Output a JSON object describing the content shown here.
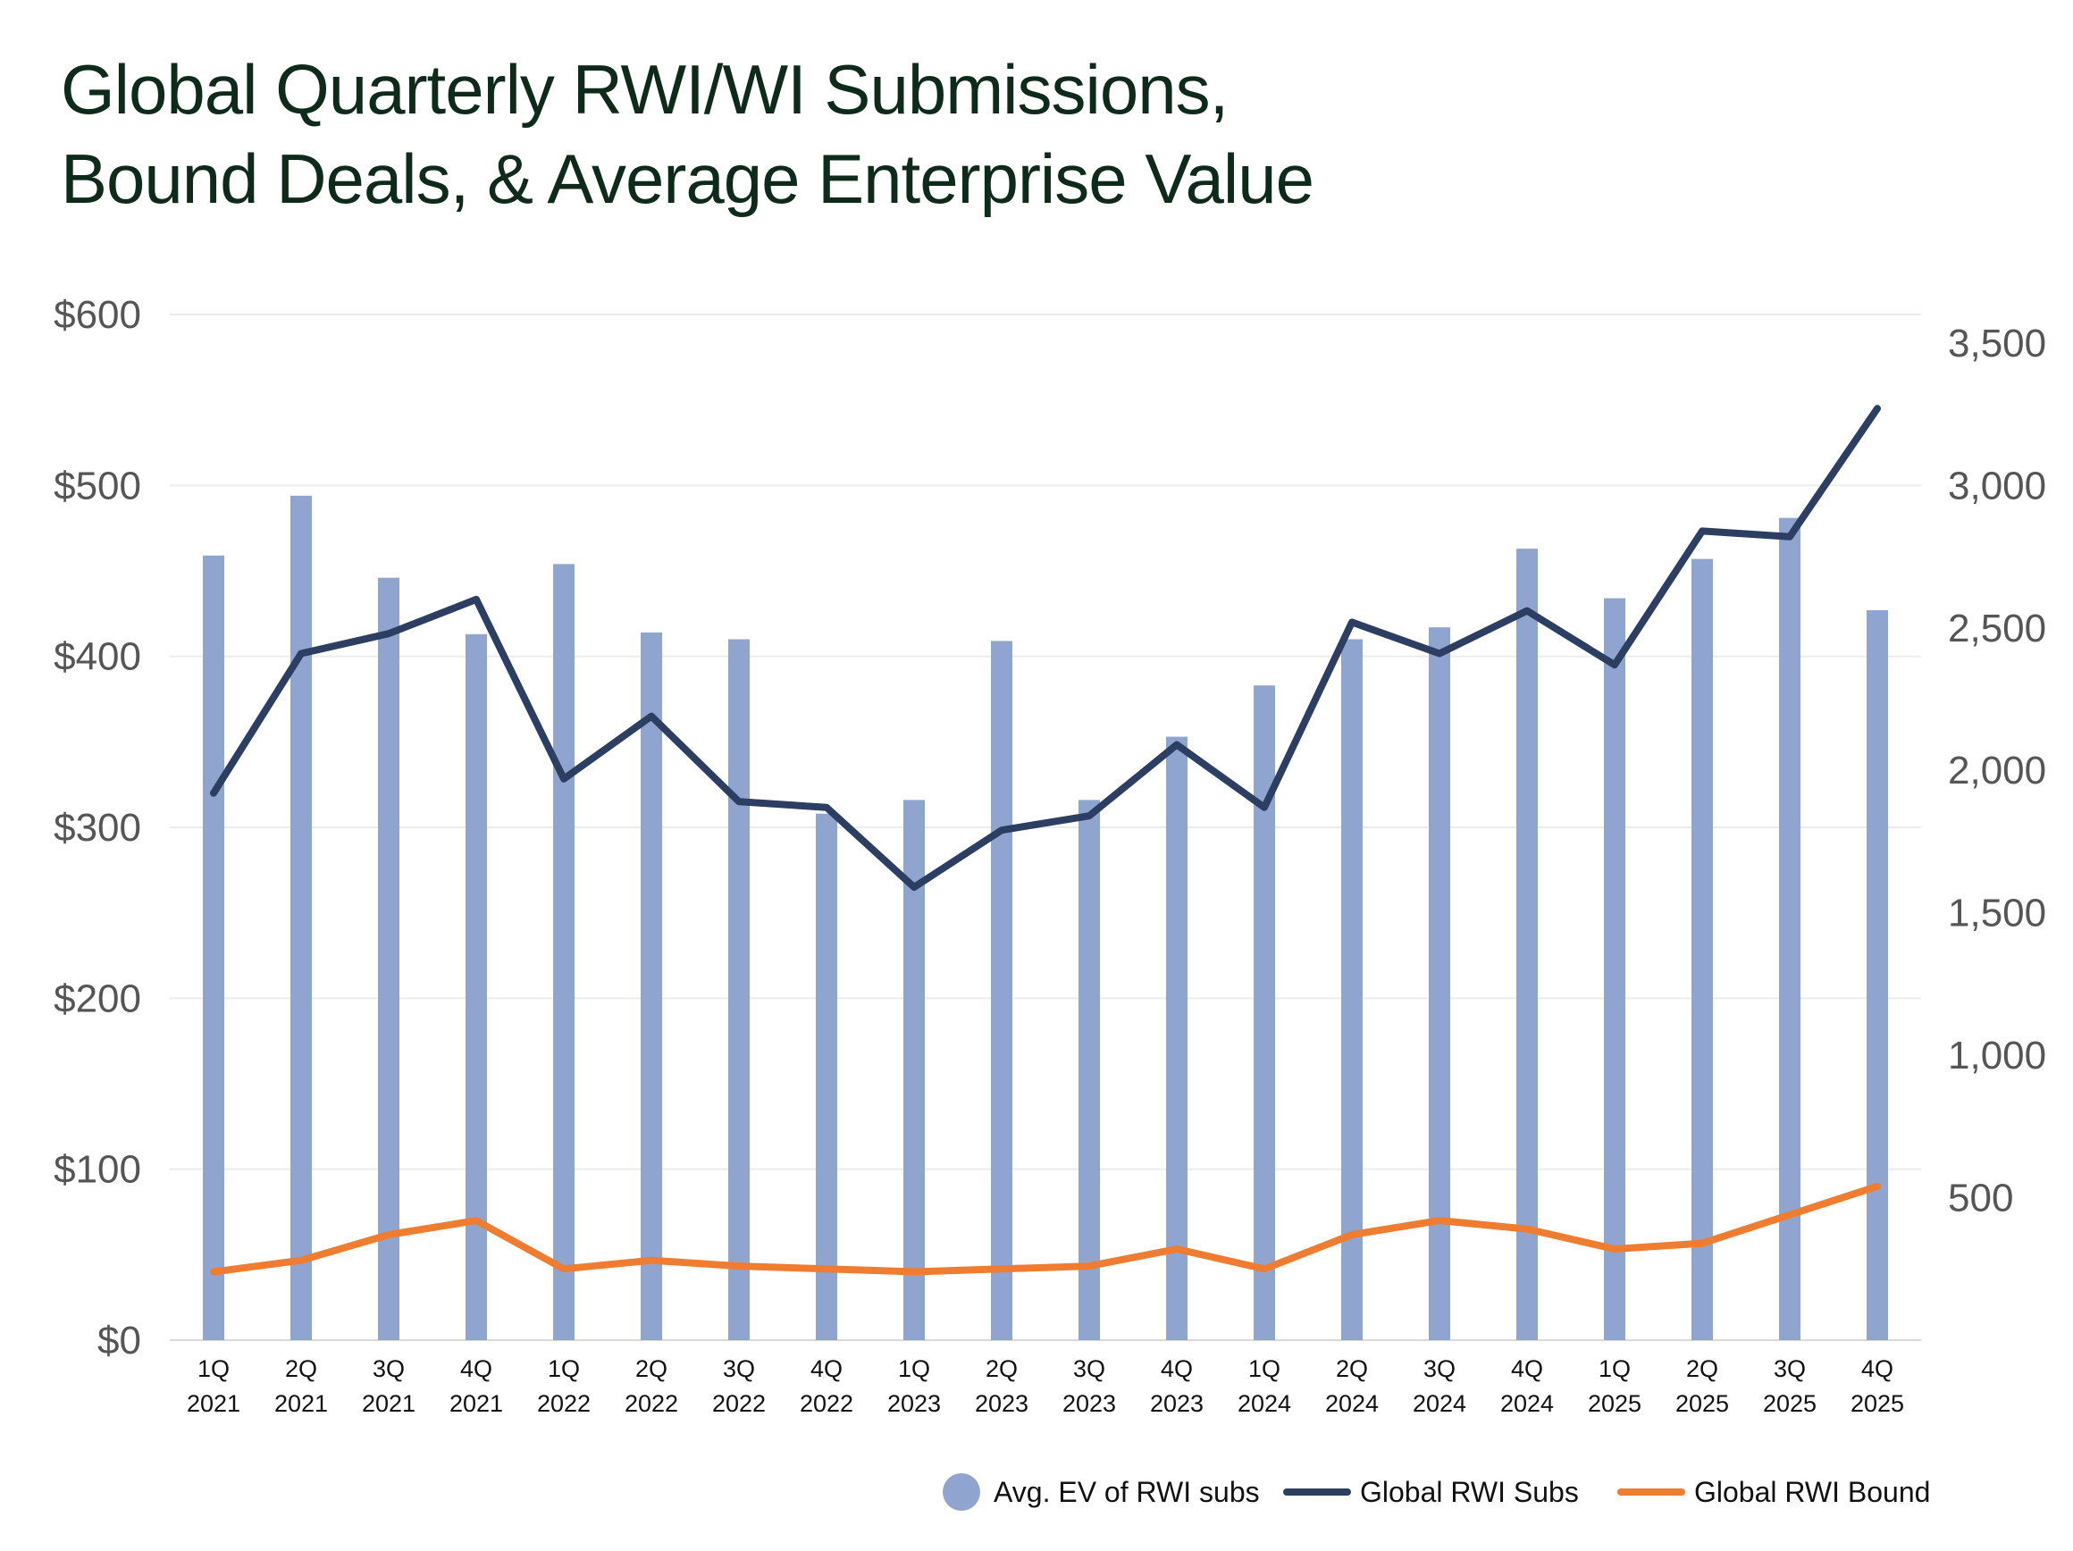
{
  "chart_data": {
    "type": "bar",
    "title": "Global Quarterly RWI/WI Submissions, Bound Deals, & Average Enterprise Value",
    "title_lines": [
      "Global Quarterly RWI/WI Submissions,",
      "Bound Deals, & Average Enterprise Value"
    ],
    "categories": [
      [
        "1Q",
        "2021"
      ],
      [
        "2Q",
        "2021"
      ],
      [
        "3Q",
        "2021"
      ],
      [
        "4Q",
        "2021"
      ],
      [
        "1Q",
        "2022"
      ],
      [
        "2Q",
        "2022"
      ],
      [
        "3Q",
        "2022"
      ],
      [
        "4Q",
        "2022"
      ],
      [
        "1Q",
        "2023"
      ],
      [
        "2Q",
        "2023"
      ],
      [
        "3Q",
        "2023"
      ],
      [
        "4Q",
        "2023"
      ],
      [
        "1Q",
        "2024"
      ],
      [
        "2Q",
        "2024"
      ],
      [
        "3Q",
        "2024"
      ],
      [
        "4Q",
        "2024"
      ],
      [
        "1Q",
        "2025"
      ],
      [
        "2Q",
        "2025"
      ],
      [
        "3Q",
        "2025"
      ],
      [
        "4Q",
        "2025"
      ]
    ],
    "left_axis": {
      "range": [
        0,
        600
      ],
      "ticks": [
        0,
        100,
        200,
        300,
        400,
        500,
        600
      ],
      "tick_labels": [
        "$0",
        "$100",
        "$200",
        "$300",
        "$400",
        "$500",
        "$600"
      ]
    },
    "right_axis": {
      "range": [
        0,
        3600
      ],
      "ticks": [
        500,
        1000,
        1500,
        2000,
        2500,
        3000,
        3500
      ],
      "tick_labels": [
        "500",
        "1,000",
        "1,500",
        "2,000",
        "2,500",
        "3,000",
        "3,500"
      ]
    },
    "grid": true,
    "legend_position": "bottom-right",
    "series": [
      {
        "name": "Avg. EV of RWI subs",
        "type": "bar",
        "axis": "left",
        "color": "#8fa5d0",
        "values": [
          459,
          494,
          446,
          413,
          454,
          414,
          410,
          308,
          316,
          409,
          316,
          353,
          383,
          410,
          417,
          463,
          434,
          457,
          481,
          427
        ]
      },
      {
        "name": "Global RWI Subs",
        "type": "line",
        "axis": "right",
        "color": "#2c3e62",
        "values": [
          1920,
          2410,
          2480,
          2600,
          1970,
          2190,
          1890,
          1870,
          1590,
          1790,
          1840,
          2090,
          1870,
          2520,
          2410,
          2560,
          2370,
          2840,
          2820,
          3270
        ]
      },
      {
        "name": "Global RWI Bound",
        "type": "line",
        "axis": "right",
        "color": "#ee7d31",
        "values": [
          240,
          280,
          370,
          420,
          250,
          280,
          260,
          250,
          240,
          250,
          260,
          320,
          250,
          370,
          420,
          390,
          320,
          340,
          440,
          540
        ]
      }
    ]
  }
}
